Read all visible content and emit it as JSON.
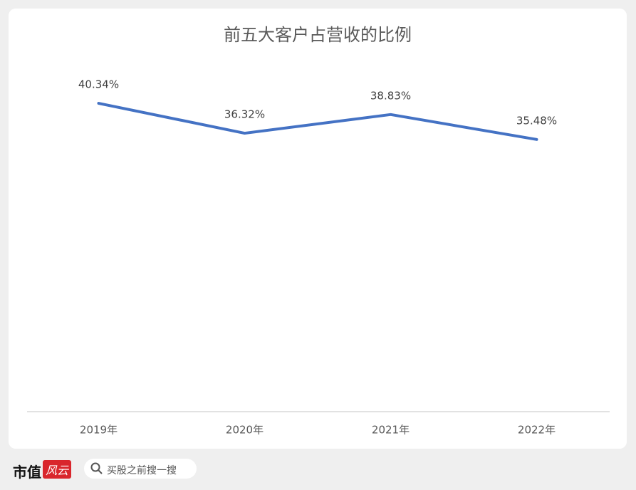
{
  "chart_data": {
    "type": "line",
    "title": "前五大客户占营收的比例",
    "categories": [
      "2019年",
      "2020年",
      "2021年",
      "2022年"
    ],
    "series": [
      {
        "name": "前五大客户占营收的比例",
        "color": "#4472c4",
        "values": [
          40.34,
          36.32,
          38.83,
          35.48
        ],
        "value_labels": [
          "40.34%",
          "36.32%",
          "38.83%",
          "35.48%"
        ]
      }
    ]
  },
  "footer": {
    "logo": "市值",
    "logo_mark": "风云",
    "search": "买股之前搜一搜"
  }
}
